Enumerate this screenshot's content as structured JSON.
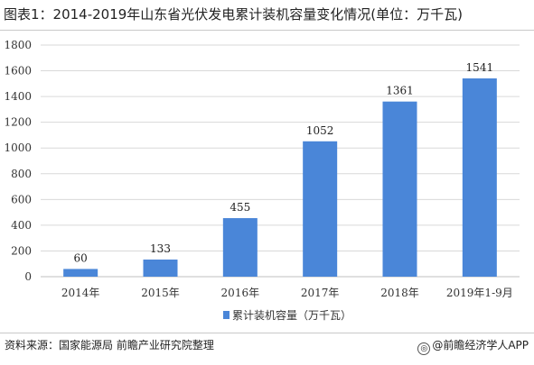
{
  "title": "图表1：2014-2019年山东省光伏发电累计装机容量变化情况(单位：万千瓦)",
  "source": "资料来源：国家能源局 前瞻产业研究院整理",
  "brand": "@前瞻经济学人APP",
  "brand_icon": "globe-icon",
  "colors": {
    "bar": "#4a86d8",
    "grid": "#d9d9d9",
    "axis": "#bfbfbf"
  },
  "chart_data": {
    "type": "bar",
    "categories": [
      "2014年",
      "2015年",
      "2016年",
      "2017年",
      "2018年",
      "2019年1-9月"
    ],
    "series": [
      {
        "name": "累计装机容量（万千瓦）",
        "values": [
          60,
          133,
          455,
          1052,
          1361,
          1541
        ]
      }
    ],
    "data_labels": [
      "60",
      "133",
      "455",
      "1052",
      "1361",
      "1541"
    ],
    "ylim": [
      0,
      1800
    ],
    "yticks": [
      0,
      200,
      400,
      600,
      800,
      1000,
      1200,
      1400,
      1600,
      1800
    ],
    "ytick_labels": [
      "0",
      "200",
      "400",
      "600",
      "800",
      "1000",
      "1200",
      "1400",
      "1600",
      "1800"
    ],
    "grid": true,
    "legend": "bottom-center",
    "xlabel": "",
    "ylabel": ""
  }
}
